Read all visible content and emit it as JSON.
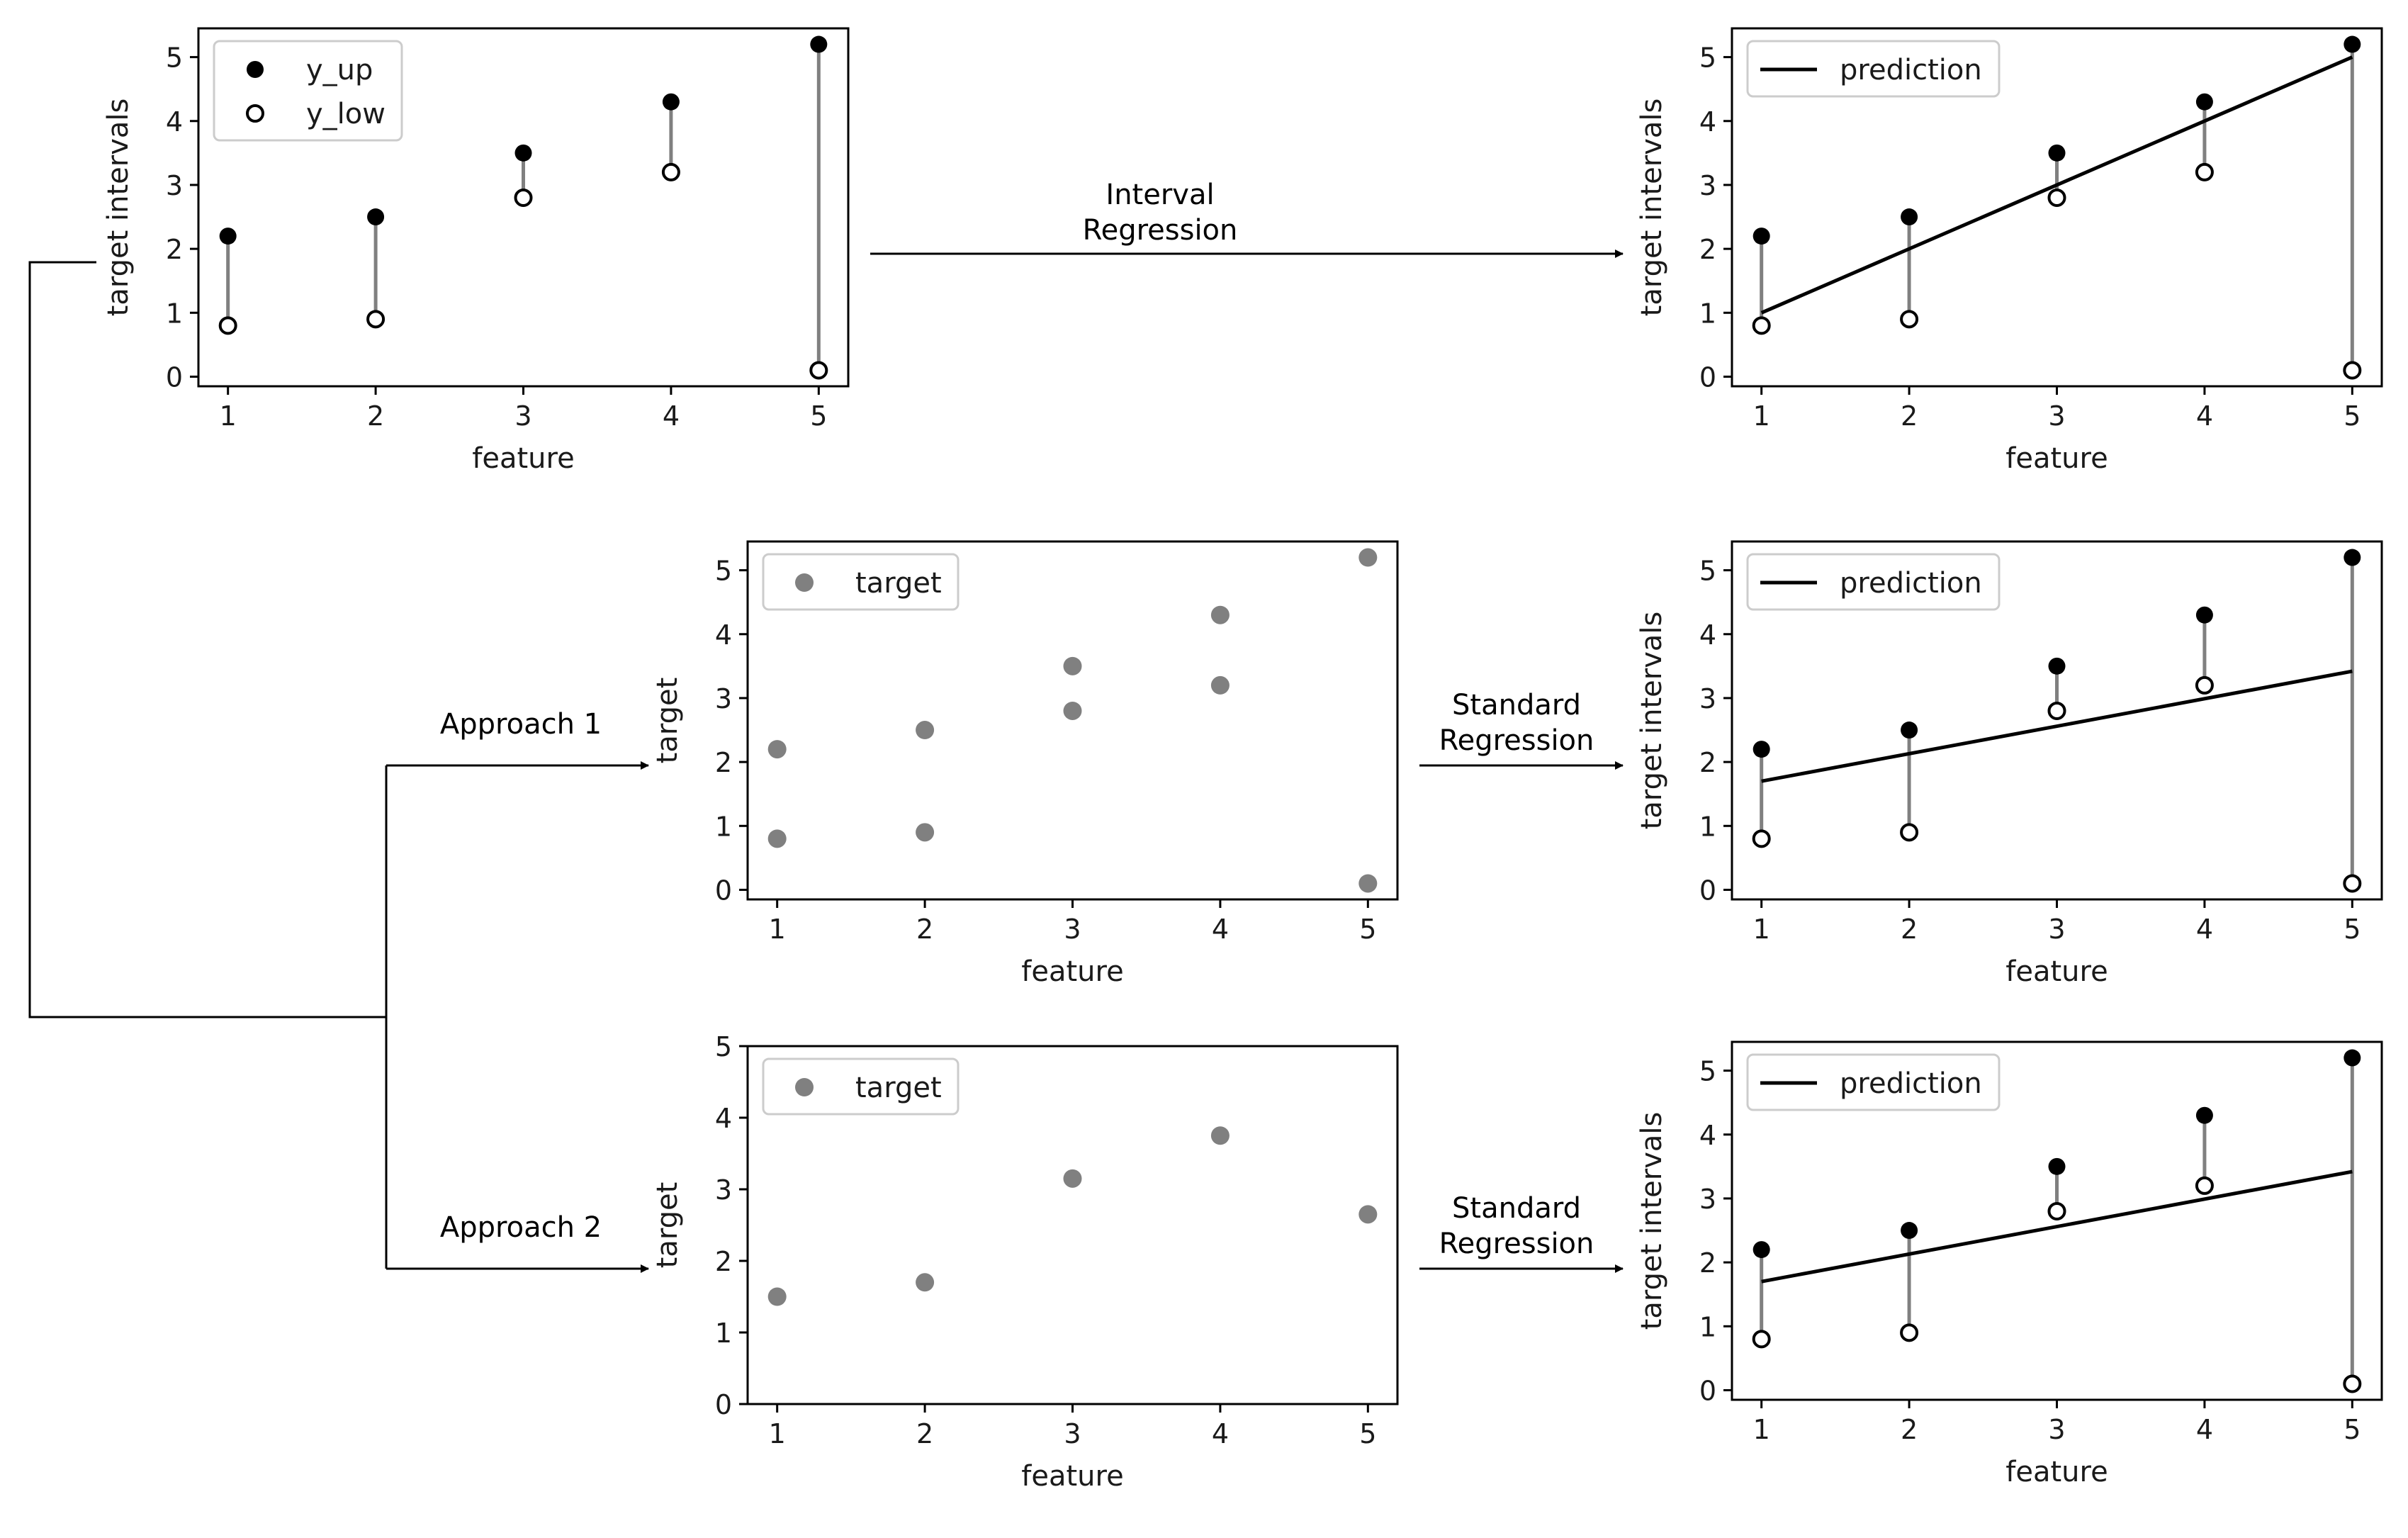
{
  "colors": {
    "frame": "#000000",
    "interval_line": "#808080",
    "y_up_marker": "#000000",
    "y_low_marker_edge": "#000000",
    "target_marker": "#808080",
    "prediction_line": "#000000",
    "connector": "#000000"
  },
  "flow": {
    "interval_regression": [
      "Interval",
      "Regression"
    ],
    "approach_1": "Approach 1",
    "approach_2": "Approach 2",
    "standard_regression_1": [
      "Standard",
      "Regression"
    ],
    "standard_regression_2": [
      "Standard",
      "Regression"
    ]
  },
  "chart_data": [
    {
      "id": "input-intervals",
      "type": "scatter",
      "xlabel": "feature",
      "ylabel": "target intervals",
      "xticks": [
        1,
        2,
        3,
        4,
        5
      ],
      "yticks": [
        0,
        1,
        2,
        3,
        4,
        5
      ],
      "xlim": [
        0.8,
        5.2
      ],
      "ylim": [
        -0.15,
        5.45
      ],
      "legend": {
        "placement": "top-left",
        "entries": [
          "y_up",
          "y_low"
        ]
      },
      "x": [
        1,
        2,
        3,
        4,
        5
      ],
      "y_up": [
        2.2,
        2.5,
        3.5,
        4.3,
        5.2
      ],
      "y_low": [
        0.8,
        0.9,
        2.8,
        3.2,
        0.1
      ]
    },
    {
      "id": "interval-regression-result",
      "type": "scatter",
      "xlabel": "feature",
      "ylabel": "target intervals",
      "xticks": [
        1,
        2,
        3,
        4,
        5
      ],
      "yticks": [
        0,
        1,
        2,
        3,
        4,
        5
      ],
      "xlim": [
        0.8,
        5.2
      ],
      "ylim": [
        -0.15,
        5.45
      ],
      "legend": {
        "placement": "top-left",
        "entries": [
          "prediction"
        ]
      },
      "x": [
        1,
        2,
        3,
        4,
        5
      ],
      "y_up": [
        2.2,
        2.5,
        3.5,
        4.3,
        5.2
      ],
      "y_low": [
        0.8,
        0.9,
        2.8,
        3.2,
        0.1
      ],
      "prediction": {
        "x": [
          1,
          5
        ],
        "y": [
          1.0,
          5.0
        ]
      }
    },
    {
      "id": "approach-1-targets",
      "type": "scatter",
      "xlabel": "feature",
      "ylabel": "target",
      "xticks": [
        1,
        2,
        3,
        4,
        5
      ],
      "yticks": [
        0,
        1,
        2,
        3,
        4,
        5
      ],
      "xlim": [
        0.8,
        5.2
      ],
      "ylim": [
        -0.15,
        5.45
      ],
      "legend": {
        "placement": "top-left",
        "entries": [
          "target"
        ]
      },
      "x": [
        1,
        1,
        2,
        2,
        3,
        3,
        4,
        4,
        5,
        5
      ],
      "y": [
        2.2,
        0.8,
        2.5,
        0.9,
        3.5,
        2.8,
        4.3,
        3.2,
        5.2,
        0.1
      ]
    },
    {
      "id": "approach-1-result",
      "type": "scatter",
      "xlabel": "feature",
      "ylabel": "target intervals",
      "xticks": [
        1,
        2,
        3,
        4,
        5
      ],
      "yticks": [
        0,
        1,
        2,
        3,
        4,
        5
      ],
      "xlim": [
        0.8,
        5.2
      ],
      "ylim": [
        -0.15,
        5.45
      ],
      "legend": {
        "placement": "top-left",
        "entries": [
          "prediction"
        ]
      },
      "x": [
        1,
        2,
        3,
        4,
        5
      ],
      "y_up": [
        2.2,
        2.5,
        3.5,
        4.3,
        5.2
      ],
      "y_low": [
        0.8,
        0.9,
        2.8,
        3.2,
        0.1
      ],
      "prediction": {
        "x": [
          1,
          5
        ],
        "y": [
          1.7,
          3.42
        ]
      }
    },
    {
      "id": "approach-2-targets",
      "type": "scatter",
      "xlabel": "feature",
      "ylabel": "target",
      "xticks": [
        1,
        2,
        3,
        4,
        5
      ],
      "yticks": [
        0,
        1,
        2,
        3,
        4,
        5
      ],
      "xlim": [
        0.8,
        5.2
      ],
      "ylim": [
        0,
        5
      ],
      "legend": {
        "placement": "top-left",
        "entries": [
          "target"
        ]
      },
      "x": [
        1,
        2,
        3,
        4,
        5
      ],
      "y": [
        1.5,
        1.7,
        3.15,
        3.75,
        2.65
      ]
    },
    {
      "id": "approach-2-result",
      "type": "scatter",
      "xlabel": "feature",
      "ylabel": "target intervals",
      "xticks": [
        1,
        2,
        3,
        4,
        5
      ],
      "yticks": [
        0,
        1,
        2,
        3,
        4,
        5
      ],
      "xlim": [
        0.8,
        5.2
      ],
      "ylim": [
        -0.15,
        5.45
      ],
      "legend": {
        "placement": "top-left",
        "entries": [
          "prediction"
        ]
      },
      "x": [
        1,
        2,
        3,
        4,
        5
      ],
      "y_up": [
        2.2,
        2.5,
        3.5,
        4.3,
        5.2
      ],
      "y_low": [
        0.8,
        0.9,
        2.8,
        3.2,
        0.1
      ],
      "prediction": {
        "x": [
          1,
          5
        ],
        "y": [
          1.7,
          3.42
        ]
      }
    }
  ]
}
